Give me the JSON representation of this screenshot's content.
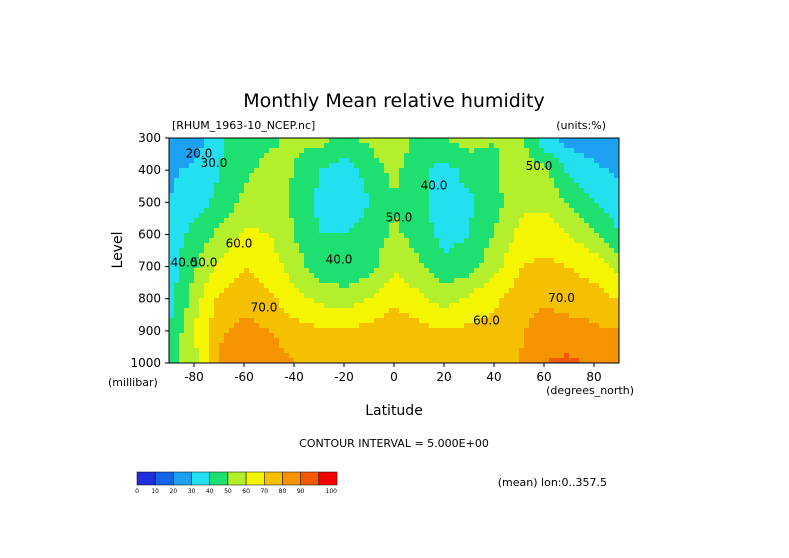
{
  "chart_data": {
    "type": "heatmap",
    "title": "Monthly Mean relative humidity",
    "dataset_label": "[RHUM_1963-10_NCEP.nc]",
    "units_label": "(units:%)",
    "ylabel": "Level",
    "yunits": "(millibar)",
    "xlabel": "Latitude",
    "xunits": "(degrees_north)",
    "contour_interval_text": "CONTOUR INTERVAL = 5.000E+00",
    "mean_text": "(mean) lon:0..357.5",
    "xlim": [
      -90,
      90
    ],
    "ylim": [
      1000,
      300
    ],
    "x_ticks": [
      -80,
      -60,
      -40,
      -20,
      0,
      20,
      40,
      60,
      80
    ],
    "y_ticks": [
      300,
      400,
      500,
      600,
      700,
      800,
      900,
      1000
    ],
    "colorbar": {
      "levels": [
        0,
        10,
        20,
        30,
        40,
        50,
        60,
        70,
        80,
        90,
        100
      ],
      "colors": [
        "#7a1fa2",
        "#1e2ed8",
        "#1464e6",
        "#1ea0f0",
        "#22e0f0",
        "#1ee070",
        "#b4ef2e",
        "#f5f500",
        "#f5c000",
        "#f59400",
        "#f55a00",
        "#f50000"
      ]
    },
    "contour_labels": [
      {
        "lat": -78,
        "lev": 360,
        "text": "20.0"
      },
      {
        "lat": -72,
        "lev": 390,
        "text": "30.0"
      },
      {
        "lat": -84,
        "lev": 700,
        "text": "40.0"
      },
      {
        "lat": -76,
        "lev": 700,
        "text": "50.0"
      },
      {
        "lat": -62,
        "lev": 640,
        "text": "60.0"
      },
      {
        "lat": -52,
        "lev": 840,
        "text": "70.0"
      },
      {
        "lat": -22,
        "lev": 690,
        "text": "40.0"
      },
      {
        "lat": 2,
        "lev": 560,
        "text": "50.0"
      },
      {
        "lat": 16,
        "lev": 460,
        "text": "40.0"
      },
      {
        "lat": 37,
        "lev": 880,
        "text": "60.0"
      },
      {
        "lat": 58,
        "lev": 400,
        "text": "50.0"
      },
      {
        "lat": 67,
        "lev": 810,
        "text": "70.0"
      }
    ],
    "grid_lat": [
      -90,
      -80,
      -70,
      -60,
      -50,
      -40,
      -30,
      -20,
      -10,
      0,
      10,
      20,
      30,
      40,
      50,
      60,
      70,
      80,
      90
    ],
    "grid_lev": [
      300,
      400,
      500,
      600,
      700,
      800,
      900,
      1000
    ],
    "values": [
      [
        20,
        24,
        38,
        44,
        48,
        52,
        54,
        48,
        52,
        60,
        44,
        50,
        54,
        50,
        54,
        34,
        26,
        24,
        20
      ],
      [
        28,
        32,
        40,
        48,
        53,
        50,
        40,
        34,
        44,
        53,
        43,
        36,
        44,
        48,
        57,
        52,
        38,
        32,
        28
      ],
      [
        30,
        36,
        42,
        52,
        56,
        48,
        38,
        30,
        40,
        49,
        43,
        34,
        38,
        46,
        58,
        58,
        48,
        40,
        34
      ],
      [
        32,
        44,
        52,
        62,
        60,
        50,
        40,
        40,
        44,
        52,
        46,
        36,
        40,
        50,
        62,
        66,
        60,
        52,
        40
      ],
      [
        36,
        48,
        62,
        70,
        66,
        55,
        44,
        42,
        46,
        58,
        52,
        42,
        46,
        56,
        70,
        72,
        70,
        66,
        56
      ],
      [
        34,
        55,
        72,
        76,
        72,
        64,
        58,
        54,
        60,
        68,
        62,
        56,
        62,
        68,
        74,
        78,
        76,
        74,
        70
      ],
      [
        40,
        60,
        78,
        84,
        80,
        74,
        72,
        70,
        74,
        76,
        74,
        70,
        72,
        74,
        78,
        86,
        84,
        82,
        80
      ],
      [
        44,
        56,
        82,
        88,
        86,
        80,
        76,
        76,
        76,
        80,
        78,
        76,
        76,
        76,
        80,
        90,
        92,
        88,
        86
      ]
    ]
  }
}
